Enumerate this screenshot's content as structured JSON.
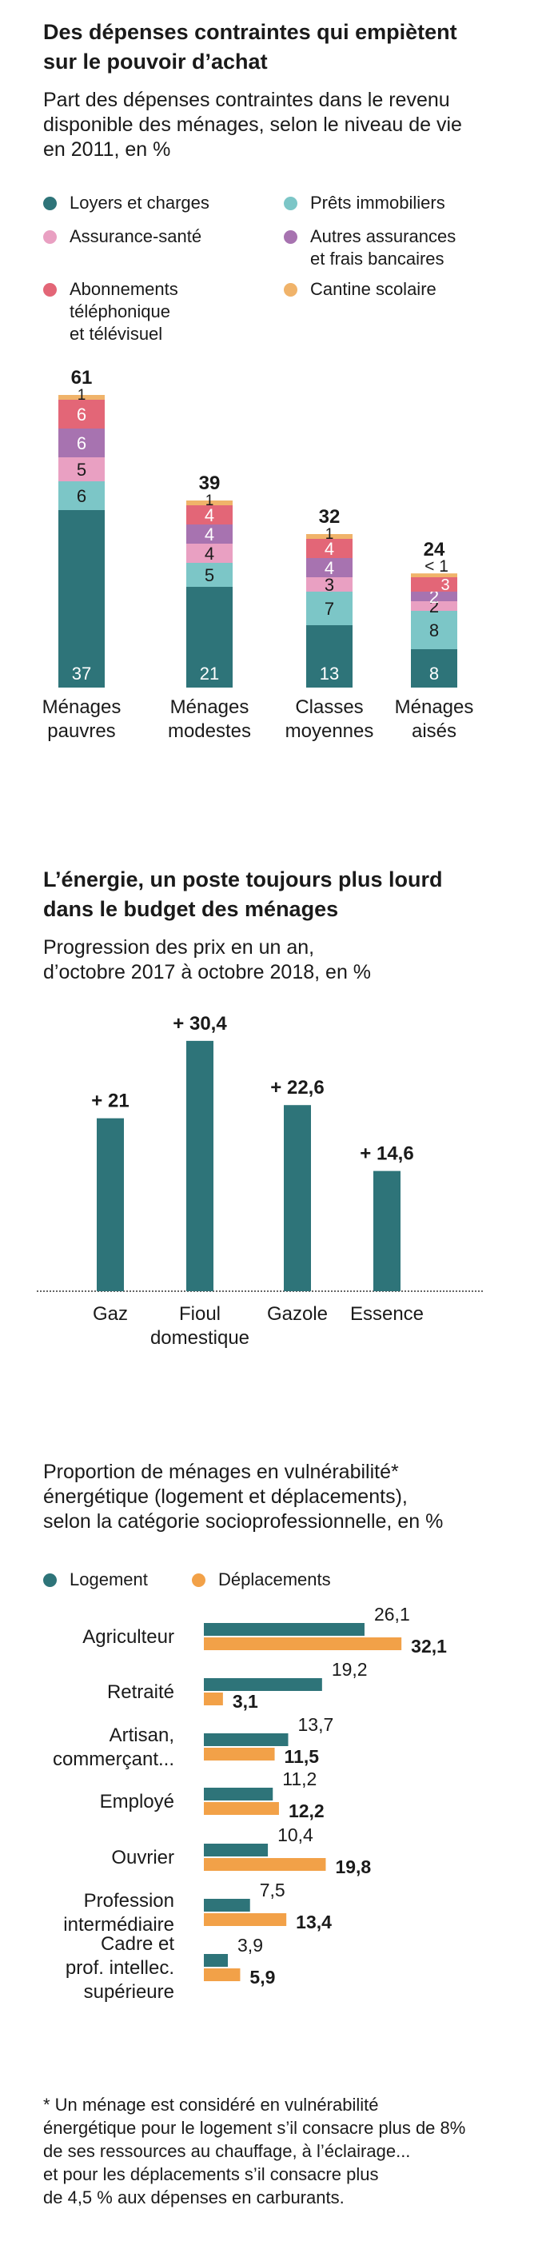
{
  "colors": {
    "loyers": "#2e7479",
    "prets": "#7cc6c7",
    "assurance_sante": "#e9a0c2",
    "autres_assurances": "#a773b0",
    "abonnements": "#e36677",
    "cantine": "#f0b36a",
    "energie": "#2e7479",
    "logement": "#2e7479",
    "deplacements": "#f2a148"
  },
  "section1": {
    "title": "Des dépenses contraintes qui empiètent\nsur le pouvoir d’achat",
    "subtitle": "Part des dépenses contraintes dans le revenu\ndisponible des ménages, selon le niveau de vie\nen 2011, en %",
    "legend": [
      {
        "key": "loyers",
        "label": "Loyers et charges",
        "icon": "circle-icon"
      },
      {
        "key": "prets",
        "label": "Prêts immobiliers",
        "icon": "circle-icon"
      },
      {
        "key": "assurance_sante",
        "label": "Assurance-santé",
        "icon": "circle-icon"
      },
      {
        "key": "autres_assurances",
        "label": "Autres assurances\net frais bancaires",
        "icon": "circle-icon"
      },
      {
        "key": "abonnements",
        "label": "Abonnements\ntéléphonique\net télévisuel",
        "icon": "circle-icon"
      },
      {
        "key": "cantine",
        "label": "Cantine scolaire",
        "icon": "circle-icon"
      }
    ]
  },
  "chart_data": [
    {
      "type": "bar",
      "stacked": true,
      "categories": [
        "Ménages\npauvres",
        "Ménages\nmodestes",
        "Classes\nmoyennes",
        "Ménages\naisés"
      ],
      "totals": [
        "61",
        "39",
        "32",
        "24"
      ],
      "series": [
        {
          "name": "Loyers et charges",
          "key": "loyers",
          "values": [
            37,
            21,
            13,
            8
          ],
          "labels": [
            "37",
            "21",
            "13",
            "8"
          ]
        },
        {
          "name": "Prêts immobiliers",
          "key": "prets",
          "values": [
            6,
            5,
            7,
            8
          ],
          "labels": [
            "6",
            "5",
            "7",
            "8"
          ]
        },
        {
          "name": "Assurance-santé",
          "key": "assurance_sante",
          "values": [
            5,
            4,
            3,
            2
          ],
          "labels": [
            "5",
            "4",
            "3",
            "2"
          ]
        },
        {
          "name": "Autres assurances et frais bancaires",
          "key": "autres_assurances",
          "values": [
            6,
            4,
            4,
            2
          ],
          "labels": [
            "6",
            "4",
            "4",
            "2"
          ]
        },
        {
          "name": "Abonnements téléphonique et télévisuel",
          "key": "abonnements",
          "values": [
            6,
            4,
            4,
            3
          ],
          "labels": [
            "6",
            "4",
            "4",
            "3"
          ]
        },
        {
          "name": "Cantine scolaire",
          "key": "cantine",
          "values": [
            1,
            1,
            1,
            0.8
          ],
          "labels": [
            "1",
            "1",
            "1",
            "< 1"
          ]
        }
      ]
    },
    {
      "type": "bar",
      "title": "L’énergie, un poste toujours plus lourd\ndans le budget des ménages",
      "subtitle": "Progression des prix en un an,\nd’octobre 2017 à octobre 2018, en %",
      "categories": [
        "Gaz",
        "Fioul\ndomestique",
        "Gazole",
        "Essence"
      ],
      "values": [
        21,
        30.4,
        22.6,
        14.6
      ],
      "labels": [
        "+ 21",
        "+ 30,4",
        "+ 22,6",
        "+ 14,6"
      ]
    },
    {
      "type": "bar",
      "orientation": "horizontal",
      "subtitle": "Proportion de ménages en vulnérabilité*\nénergétique (logement et déplacements),\nselon la catégorie socioprofessionnelle, en %",
      "legend": [
        {
          "key": "logement",
          "label": "Logement",
          "icon": "circle-icon"
        },
        {
          "key": "deplacements",
          "label": "Déplacements",
          "icon": "circle-icon"
        }
      ],
      "categories": [
        "Agriculteur",
        "Retraité",
        "Artisan,\ncommerçant...",
        "Employé",
        "Ouvrier",
        "Profession\nintermédiaire",
        "Cadre et\nprof. intellec.\nsupérieure"
      ],
      "series": [
        {
          "name": "Logement",
          "key": "logement",
          "values": [
            26.1,
            19.2,
            13.7,
            11.2,
            10.4,
            7.5,
            3.9
          ],
          "labels": [
            "26,1",
            "19,2",
            "13,7",
            "11,2",
            "10,4",
            "7,5",
            "3,9"
          ]
        },
        {
          "name": "Déplacements",
          "key": "deplacements",
          "values": [
            32.1,
            3.1,
            11.5,
            12.2,
            19.8,
            13.4,
            5.9
          ],
          "labels": [
            "32,1",
            "3,1",
            "11,5",
            "12,2",
            "19,8",
            "13,4",
            "5,9"
          ]
        }
      ]
    }
  ],
  "footnote": "* Un ménage est considéré en vulnérabilité\nénergétique pour le logement s’il consacre plus de 8%\nde ses ressources au chauffage, à l’éclairage...\net pour les déplacements s’il consacre plus\nde 4,5 % aux dépenses en carburants."
}
